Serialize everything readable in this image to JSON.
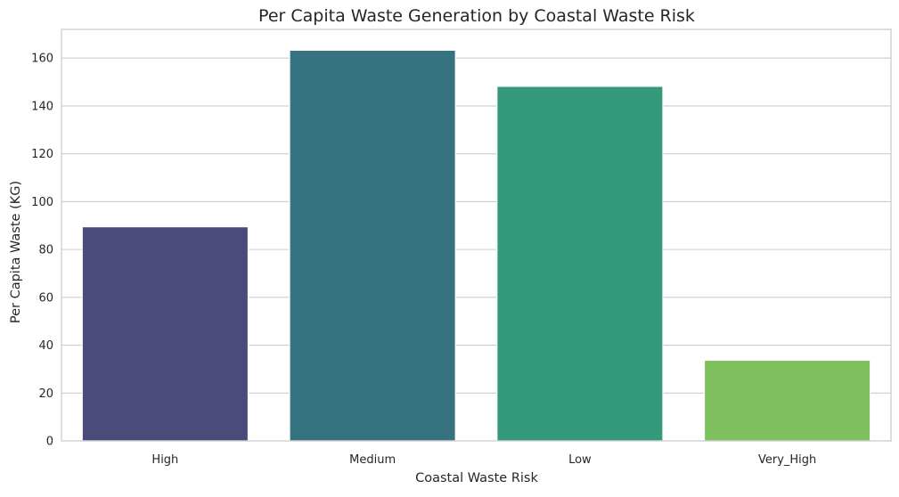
{
  "chart_data": {
    "type": "bar",
    "title": "Per Capita Waste Generation by Coastal Waste Risk",
    "xlabel": "Coastal Waste Risk",
    "ylabel": "Per Capita Waste (KG)",
    "categories": [
      "High",
      "Medium",
      "Low",
      "Very_High"
    ],
    "values": [
      89.5,
      163.3,
      148.2,
      33.7
    ],
    "colors": [
      "#4a4a7b",
      "#377280",
      "#35997b",
      "#7fc05e"
    ],
    "ylim": [
      0,
      172
    ],
    "yticks": [
      0,
      20,
      40,
      60,
      80,
      100,
      120,
      140,
      160
    ],
    "grid": "horizontal",
    "legend": "none"
  }
}
